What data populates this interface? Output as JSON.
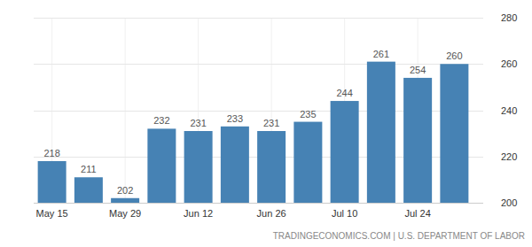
{
  "chart_data": {
    "type": "bar",
    "categories": [
      "May 15",
      null,
      "May 29",
      null,
      "Jun 12",
      null,
      "Jun 26",
      null,
      "Jul 10",
      null,
      "Jul 24",
      null
    ],
    "values": [
      218,
      211,
      202,
      232,
      231,
      233,
      231,
      235,
      244,
      261,
      254,
      260
    ],
    "color": "#4682b4",
    "ylim": [
      200,
      280
    ],
    "yticks": [
      200,
      220,
      240,
      260,
      280
    ],
    "grid": true,
    "data_labels": true,
    "source": "TRADINGECONOMICS.COM | U.S. DEPARTMENT OF LABOR"
  }
}
